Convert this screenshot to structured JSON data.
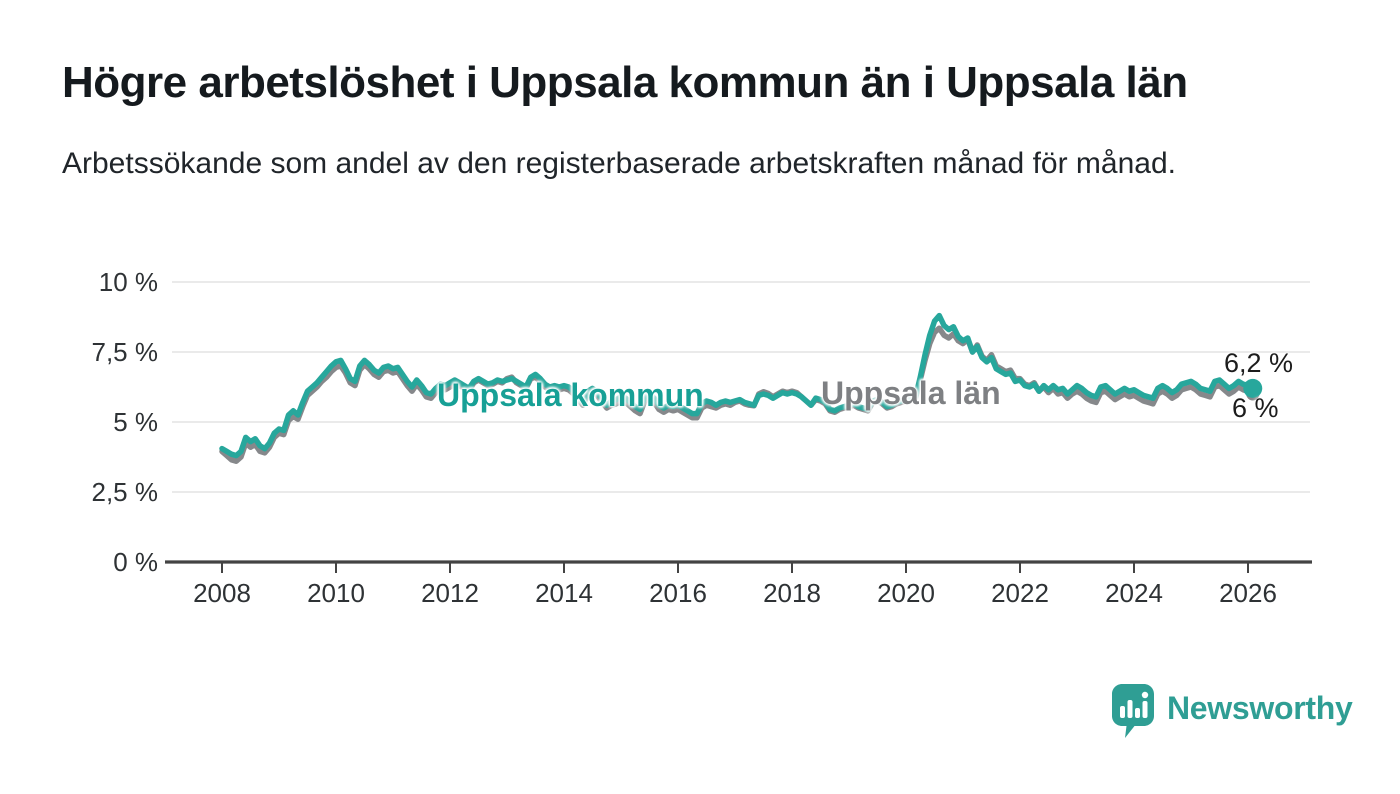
{
  "title": "Högre arbetslöshet i Uppsala kommun än i Uppsala län",
  "subtitle": "Arbetssökande som andel av den registerbaserade arbetskraften månad för månad.",
  "chart_data": {
    "type": "line",
    "unit": "%",
    "x_start_year": 2008,
    "x_step_months": 1,
    "grid": true,
    "legend": "inline-labels",
    "x_axis": {
      "ticks": [
        2008,
        2010,
        2012,
        2014,
        2016,
        2018,
        2020,
        2022,
        2024,
        2026
      ]
    },
    "y_axis": {
      "range": [
        0,
        10
      ],
      "ticks": [
        {
          "value": 10,
          "label": "10 %"
        },
        {
          "value": 7.5,
          "label": "7,5 %"
        },
        {
          "value": 5,
          "label": "5 %"
        },
        {
          "value": 2.5,
          "label": "2,5 %"
        },
        {
          "value": 0,
          "label": "0 %"
        }
      ]
    },
    "series": [
      {
        "name": "Uppsala kommun",
        "color": "#27a79c",
        "label_color": "#17a096",
        "end_label": "6,2 %",
        "end_value": 6.2,
        "values": [
          4.05,
          3.95,
          3.85,
          3.8,
          3.95,
          4.45,
          4.3,
          4.4,
          4.15,
          4.05,
          4.25,
          4.6,
          4.75,
          4.7,
          5.25,
          5.4,
          5.25,
          5.7,
          6.1,
          6.25,
          6.4,
          6.6,
          6.8,
          7,
          7.15,
          7.2,
          6.9,
          6.55,
          6.45,
          7,
          7.2,
          7.05,
          6.85,
          6.75,
          6.95,
          7,
          6.9,
          6.95,
          6.7,
          6.45,
          6.25,
          6.5,
          6.3,
          6.05,
          6,
          6.2,
          6.35,
          6.3,
          6.4,
          6.5,
          6.4,
          6.3,
          6.2,
          6.45,
          6.55,
          6.45,
          6.35,
          6.4,
          6.5,
          6.45,
          6.5,
          6.55,
          6.45,
          6.35,
          6.25,
          6.6,
          6.7,
          6.55,
          6.35,
          6.25,
          6.3,
          6.25,
          6.3,
          6.25,
          6.1,
          5.9,
          5.7,
          6.1,
          6.2,
          6.05,
          5.8,
          5.6,
          5.75,
          5.8,
          5.9,
          5.85,
          5.7,
          5.55,
          5.45,
          5.9,
          6,
          5.85,
          5.6,
          5.5,
          5.6,
          5.55,
          5.6,
          5.5,
          5.4,
          5.3,
          5.3,
          5.65,
          5.75,
          5.7,
          5.6,
          5.7,
          5.75,
          5.7,
          5.75,
          5.8,
          5.7,
          5.65,
          5.6,
          5.95,
          6,
          5.95,
          5.85,
          5.95,
          6.05,
          6,
          6.05,
          6,
          5.9,
          5.75,
          5.6,
          5.85,
          5.8,
          5.7,
          5.45,
          5.4,
          5.5,
          5.55,
          5.6,
          5.65,
          5.55,
          5.5,
          5.45,
          5.75,
          5.8,
          5.7,
          5.55,
          5.6,
          5.7,
          5.75,
          5.8,
          5.85,
          5.9,
          6.6,
          7.4,
          8.1,
          8.6,
          8.8,
          8.45,
          8.3,
          8.4,
          8.05,
          7.9,
          8,
          7.5,
          7.7,
          7.3,
          7.15,
          7.3,
          6.9,
          6.8,
          6.7,
          6.75,
          6.45,
          6.5,
          6.3,
          6.25,
          6.35,
          6.1,
          6.3,
          6.15,
          6.3,
          6.15,
          6.2,
          6,
          6.15,
          6.3,
          6.2,
          6.05,
          5.95,
          5.9,
          6.25,
          6.3,
          6.15,
          6,
          6.1,
          6.2,
          6.1,
          6.15,
          6.05,
          5.95,
          5.9,
          5.85,
          6.2,
          6.3,
          6.2,
          6.05,
          6.15,
          6.35,
          6.4,
          6.45,
          6.35,
          6.2,
          6.15,
          6.1,
          6.45,
          6.5,
          6.35,
          6.2,
          6.3,
          6.45,
          6.35,
          6.3,
          6.2
        ]
      },
      {
        "name": "Uppsala län",
        "color": "#86888b",
        "label_color": "#7e8083",
        "end_label": "6 %",
        "end_value": 6.0,
        "values": [
          3.95,
          3.8,
          3.65,
          3.6,
          3.75,
          4.25,
          4.1,
          4.2,
          3.95,
          3.9,
          4.1,
          4.45,
          4.6,
          4.55,
          5.05,
          5.2,
          5.1,
          5.55,
          5.95,
          6.1,
          6.25,
          6.45,
          6.6,
          6.8,
          6.95,
          7,
          6.75,
          6.4,
          6.3,
          6.85,
          7.05,
          6.9,
          6.7,
          6.6,
          6.8,
          6.85,
          6.75,
          6.8,
          6.55,
          6.3,
          6.1,
          6.35,
          6.15,
          5.9,
          5.85,
          6.05,
          6.2,
          6.15,
          6.25,
          6.35,
          6.3,
          6.2,
          6.1,
          6.4,
          6.5,
          6.4,
          6.3,
          6.35,
          6.45,
          6.4,
          6.55,
          6.6,
          6.4,
          6.3,
          6.2,
          6.55,
          6.6,
          6.45,
          6.25,
          6.15,
          6.2,
          6.15,
          6.2,
          6.15,
          6,
          5.8,
          5.6,
          6,
          6.1,
          5.95,
          5.7,
          5.5,
          5.6,
          5.65,
          5.75,
          5.7,
          5.55,
          5.4,
          5.3,
          5.75,
          5.85,
          5.7,
          5.45,
          5.35,
          5.45,
          5.4,
          5.45,
          5.35,
          5.25,
          5.15,
          5.15,
          5.5,
          5.6,
          5.55,
          5.5,
          5.6,
          5.65,
          5.6,
          5.7,
          5.75,
          5.65,
          5.6,
          5.58,
          6,
          6.08,
          6.02,
          5.9,
          6,
          6.1,
          6.05,
          6.1,
          6.05,
          5.9,
          5.75,
          5.6,
          5.8,
          5.75,
          5.65,
          5.4,
          5.35,
          5.45,
          5.5,
          5.55,
          5.6,
          5.5,
          5.45,
          5.4,
          5.7,
          5.75,
          5.65,
          5.5,
          5.55,
          5.65,
          5.7,
          5.75,
          5.8,
          5.85,
          6.5,
          7.2,
          7.8,
          8.2,
          8.35,
          8.1,
          8,
          8.15,
          7.9,
          7.8,
          7.95,
          7.5,
          7.75,
          7.35,
          7.2,
          7.4,
          7,
          6.9,
          6.8,
          6.85,
          6.55,
          6.55,
          6.35,
          6.3,
          6.4,
          6.1,
          6.25,
          6.05,
          6.2,
          6,
          6.05,
          5.85,
          6,
          6.1,
          6,
          5.85,
          5.75,
          5.7,
          6.05,
          6.1,
          5.95,
          5.8,
          5.9,
          6,
          5.9,
          5.95,
          5.85,
          5.75,
          5.7,
          5.65,
          6,
          6.1,
          6,
          5.85,
          5.95,
          6.15,
          6.2,
          6.25,
          6.15,
          6,
          5.95,
          5.9,
          6.25,
          6.3,
          6.15,
          6,
          6.1,
          6.25,
          6.15,
          6.1,
          6
        ]
      }
    ],
    "style": {
      "grid_color": "#e3e3e3",
      "axis_color": "#434343",
      "text_color": "#2e3235"
    }
  },
  "branding": {
    "logo_text": "Newsworthy",
    "logo_color": "#2f9e94",
    "logo_icon": "bar-chart-speech-bubble-icon"
  }
}
